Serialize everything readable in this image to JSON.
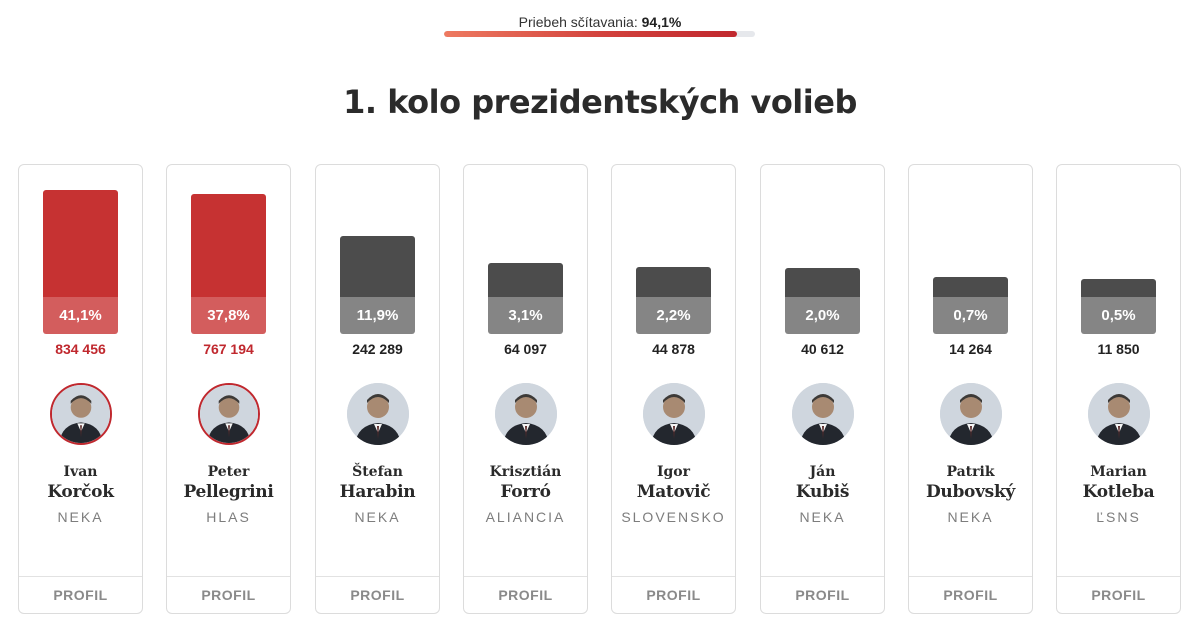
{
  "counting": {
    "label": "Priebeh sčítavania:",
    "value": "94,1%",
    "progress_fraction": 0.941
  },
  "title": "1. kolo prezidentských volieb",
  "colors": {
    "accent": "#c0282e",
    "lead_bar": "#c63232",
    "other_bar": "#4c4c4c"
  },
  "candidates": [
    {
      "first_name": "Ivan",
      "last_name": "Korčok",
      "party": "NEKA",
      "percent": "41,1%",
      "share": 41.1,
      "votes": "834 456",
      "highlight": true,
      "profile_label": "PROFIL",
      "photo_icon": "candidate-photo"
    },
    {
      "first_name": "Peter",
      "last_name": "Pellegrini",
      "party": "HLAS",
      "percent": "37,8%",
      "share": 37.8,
      "votes": "767 194",
      "highlight": true,
      "profile_label": "PROFIL",
      "photo_icon": "candidate-photo"
    },
    {
      "first_name": "Štefan",
      "last_name": "Harabin",
      "party": "NEKA",
      "percent": "11,9%",
      "share": 11.9,
      "votes": "242 289",
      "highlight": false,
      "profile_label": "PROFIL",
      "photo_icon": "candidate-photo"
    },
    {
      "first_name": "Krisztián",
      "last_name": "Forró",
      "party": "ALIANCIA",
      "percent": "3,1%",
      "share": 3.1,
      "votes": "64 097",
      "highlight": false,
      "profile_label": "PROFIL",
      "photo_icon": "candidate-photo"
    },
    {
      "first_name": "Igor",
      "last_name": "Matovič",
      "party": "SLOVENSKO",
      "percent": "2,2%",
      "share": 2.2,
      "votes": "44 878",
      "highlight": false,
      "profile_label": "PROFIL",
      "photo_icon": "candidate-photo"
    },
    {
      "first_name": "Ján",
      "last_name": "Kubiš",
      "party": "NEKA",
      "percent": "2,0%",
      "share": 2.0,
      "votes": "40 612",
      "highlight": false,
      "profile_label": "PROFIL",
      "photo_icon": "candidate-photo"
    },
    {
      "first_name": "Patrik",
      "last_name": "Dubovský",
      "party": "NEKA",
      "percent": "0,7%",
      "share": 0.7,
      "votes": "14 264",
      "highlight": false,
      "profile_label": "PROFIL",
      "photo_icon": "candidate-photo"
    },
    {
      "first_name": "Marian",
      "last_name": "Kotleba",
      "party": "ĽSNS",
      "percent": "0,5%",
      "share": 0.5,
      "votes": "11 850",
      "highlight": false,
      "profile_label": "PROFIL",
      "photo_icon": "candidate-photo"
    }
  ]
}
